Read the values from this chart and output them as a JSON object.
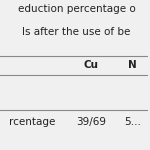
{
  "title_line1": "eduction percentage o",
  "title_line2": "ls after the use of be",
  "col_header1": "Cu",
  "col_header2": "N",
  "row_label": "rcentage",
  "row_val1": "39/69",
  "row_val2": "5…",
  "bg_color": "#f0f0f0",
  "text_color": "#222222",
  "title_fontsize": 7.5,
  "table_fontsize": 7.5
}
